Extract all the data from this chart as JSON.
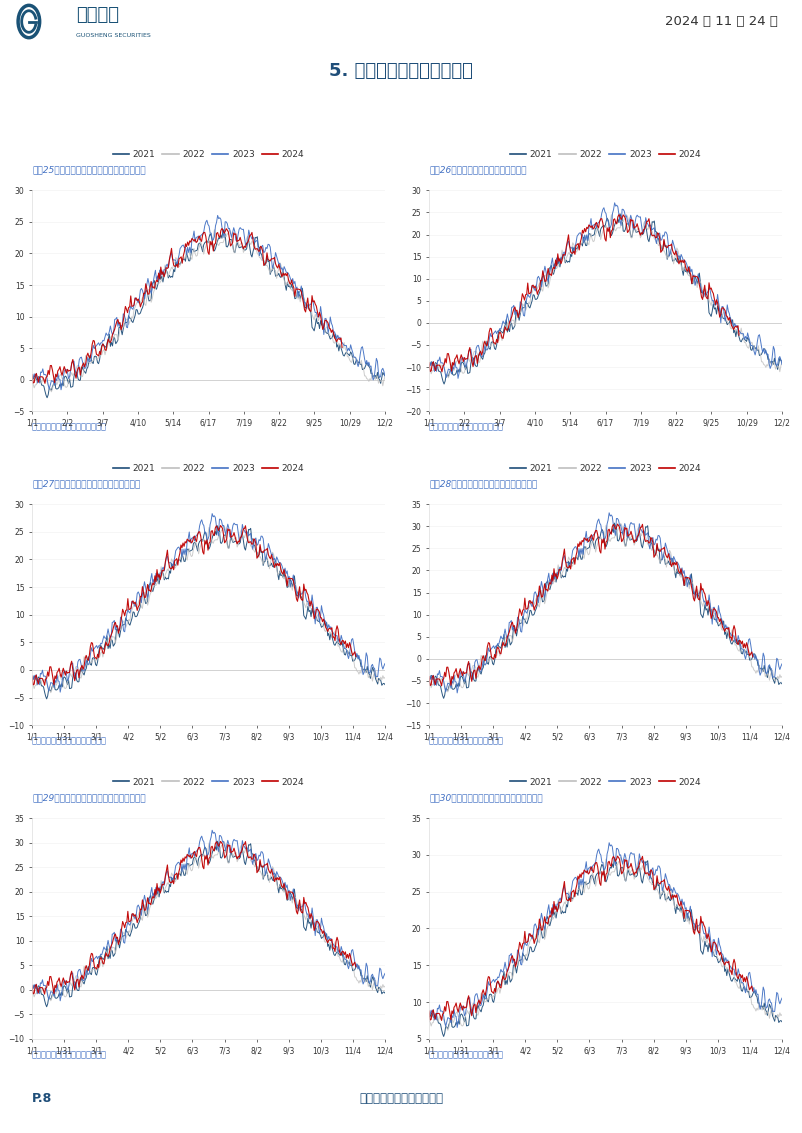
{
  "page_title": "5. 气温：全球气温逐渐转冷",
  "header_text": "2024 年 11 月 24 日",
  "company": "国盛证券",
  "footer_page": "P.8",
  "footer_note": "请仔细阅读本报告末页声明",
  "source_note": "资料来源：彭博，国盛证券研究所",
  "charts": [
    {
      "title": "图表25：西北欧主要国家平均气温（摄氏度）",
      "xticks": [
        "1/1",
        "2/2",
        "3/7",
        "4/10",
        "5/14",
        "6/17",
        "7/19",
        "8/22",
        "9/25",
        "10/29",
        "12/2"
      ],
      "ylim": [
        -5,
        30
      ],
      "yticks": [
        -5,
        0,
        5,
        10,
        15,
        20,
        25,
        30
      ],
      "zero_line": true,
      "min_temp": 0,
      "max_temp": 22
    },
    {
      "title": "图表26：北欧主要国家气温（摄氏度）",
      "xticks": [
        "1/1",
        "2/2",
        "3/7",
        "4/10",
        "5/14",
        "6/17",
        "7/19",
        "8/22",
        "9/25",
        "10/29",
        "12/2"
      ],
      "ylim": [
        -20,
        30
      ],
      "yticks": [
        -20,
        -15,
        -10,
        -5,
        0,
        5,
        10,
        15,
        20,
        25,
        30
      ],
      "zero_line": true,
      "min_temp": -10,
      "max_temp": 22
    },
    {
      "title": "图表27：中欧主要国家平均气温（摄氏度）",
      "xticks": [
        "1/1",
        "1/31",
        "3/1",
        "4/2",
        "5/2",
        "6/3",
        "7/3",
        "8/2",
        "9/3",
        "10/3",
        "11/4",
        "12/4"
      ],
      "ylim": [
        -10,
        30
      ],
      "yticks": [
        -10,
        -5,
        0,
        5,
        10,
        15,
        20,
        25,
        30
      ],
      "zero_line": true,
      "min_temp": -2,
      "max_temp": 24
    },
    {
      "title": "图表28：东欧主要国家平均气温（摄氏度）",
      "xticks": [
        "1/1",
        "1/31",
        "3/1",
        "4/2",
        "5/2",
        "6/3",
        "7/3",
        "8/2",
        "9/3",
        "10/3",
        "11/4",
        "12/4"
      ],
      "ylim": [
        -15,
        35
      ],
      "yticks": [
        -15,
        -10,
        -5,
        0,
        5,
        10,
        15,
        20,
        25,
        30,
        35
      ],
      "zero_line": true,
      "min_temp": -5,
      "max_temp": 28
    },
    {
      "title": "图表29：东南欧主要国家平均气温（摄氏度）",
      "xticks": [
        "1/1",
        "1/31",
        "3/1",
        "4/2",
        "5/2",
        "6/3",
        "7/3",
        "8/2",
        "9/3",
        "10/3",
        "11/4",
        "12/4"
      ],
      "ylim": [
        -10,
        35
      ],
      "yticks": [
        -10,
        -5,
        0,
        5,
        10,
        15,
        20,
        25,
        30,
        35
      ],
      "zero_line": true,
      "min_temp": 0,
      "max_temp": 28
    },
    {
      "title": "图表30：地中海主要国家平均气温（摄氏度）",
      "xticks": [
        "1/1",
        "1/31",
        "3/1",
        "4/2",
        "5/2",
        "6/3",
        "7/3",
        "8/2",
        "9/3",
        "10/3",
        "11/4",
        "12/4"
      ],
      "ylim": [
        5,
        35
      ],
      "yticks": [
        5,
        10,
        15,
        20,
        25,
        30,
        35
      ],
      "zero_line": false,
      "min_temp": 8,
      "max_temp": 28
    }
  ],
  "legend_labels": [
    "2021",
    "2022",
    "2023",
    "2024"
  ],
  "line_colors": {
    "2021": "#1f4e79",
    "2022": "#bfbfbf",
    "2023": "#4472c4",
    "2024": "#c00000"
  },
  "title_color": "#1f4e79",
  "label_color": "#4472c4",
  "background_color": "#ffffff",
  "axis_color": "#cccccc",
  "zero_line_color": "#999999",
  "header_line_color": "#1f4e79",
  "divider_line_color": "#1f4e79"
}
